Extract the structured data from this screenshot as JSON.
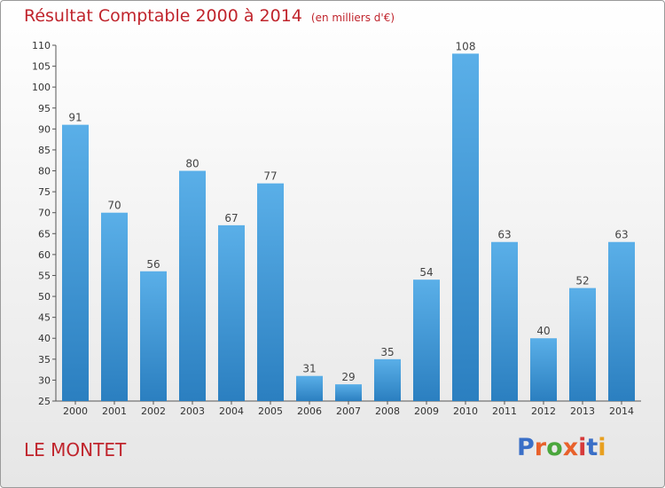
{
  "header": {
    "title": "Résultat Comptable 2000 à 2014",
    "subtitle": "(en milliers d'€)"
  },
  "footer": {
    "location": "LE MONTET",
    "logo_text": "Proxiti"
  },
  "colors": {
    "bar_top": "#5aafe8",
    "bar_bottom": "#2b7fc0",
    "title": "#c0242c",
    "logo": [
      "#3a6fc7",
      "#e8612b",
      "#4aa63c",
      "#e8612b",
      "#d63a3a",
      "#3a6fc7",
      "#e8a020"
    ]
  },
  "chart_data": {
    "type": "bar",
    "title": "Résultat Comptable 2000 à 2014",
    "subtitle": "(en milliers d'€)",
    "xlabel": "",
    "ylabel": "",
    "categories": [
      "2000",
      "2001",
      "2002",
      "2003",
      "2004",
      "2005",
      "2006",
      "2007",
      "2008",
      "2009",
      "2010",
      "2011",
      "2012",
      "2013",
      "2014"
    ],
    "values": [
      91,
      70,
      56,
      80,
      67,
      77,
      31,
      29,
      35,
      54,
      108,
      63,
      40,
      52,
      63
    ],
    "ylim": [
      25,
      110
    ],
    "yticks": [
      25,
      30,
      35,
      40,
      45,
      50,
      55,
      60,
      65,
      70,
      75,
      80,
      85,
      90,
      95,
      100,
      105,
      110
    ],
    "grid": false,
    "legend": "none"
  }
}
